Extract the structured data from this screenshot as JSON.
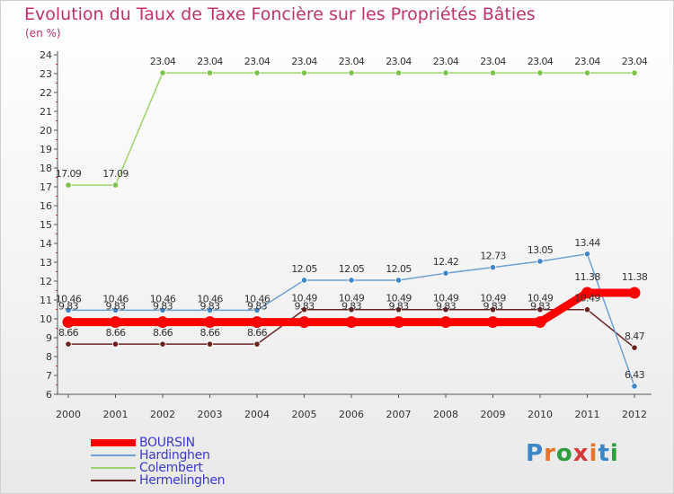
{
  "header": {
    "title": "Evolution du Taux de Taxe Foncière sur les Propriétés Bâties",
    "unit": "(en %)"
  },
  "logo": {
    "text": "Proxiti",
    "letter_colors": [
      "#3a86c8",
      "#e8742a",
      "#2e9d3e",
      "#d43a3a",
      "#e8742a",
      "#3a86c8",
      "#2e9d3e"
    ]
  },
  "chart_data": {
    "type": "line",
    "title": "Evolution du Taux de Taxe Foncière sur les Propriétés Bâties",
    "ylabel": "(en %)",
    "xlabel": "",
    "categories": [
      "2000",
      "2001",
      "2002",
      "2003",
      "2004",
      "2005",
      "2006",
      "2007",
      "2008",
      "2009",
      "2010",
      "2011",
      "2012"
    ],
    "ylim": [
      6,
      24
    ],
    "yticks": [
      "6",
      "7",
      "8",
      "9",
      "10",
      "11",
      "12",
      "13",
      "14",
      "15",
      "16",
      "17",
      "18",
      "19",
      "20",
      "21",
      "22",
      "23",
      "24"
    ],
    "grid": false,
    "legend_position": "bottom-left",
    "series": [
      {
        "name": "Hermelinghen",
        "color": "#6b2424",
        "values": [
          8.66,
          8.66,
          8.66,
          8.66,
          8.66,
          10.49,
          10.49,
          10.49,
          10.49,
          10.49,
          10.49,
          10.49,
          8.47
        ],
        "labels": [
          "8.66",
          "8.66",
          "8.66",
          "8.66",
          "8.66",
          "10.49",
          "10.49",
          "10.49",
          "10.49",
          "10.49",
          "10.49",
          "10.49",
          "8.47"
        ]
      },
      {
        "name": "Colembert",
        "color": "#9ed26a",
        "values": [
          17.09,
          17.09,
          23.04,
          23.04,
          23.04,
          23.04,
          23.04,
          23.04,
          23.04,
          23.04,
          23.04,
          23.04,
          23.04
        ],
        "labels": [
          "17.09",
          "17.09",
          "23.04",
          "23.04",
          "23.04",
          "23.04",
          "23.04",
          "23.04",
          "23.04",
          "23.04",
          "23.04",
          "23.04",
          "23.04"
        ]
      },
      {
        "name": "Hardinghen",
        "color": "#6fa0d2",
        "values": [
          10.46,
          10.46,
          10.46,
          10.46,
          10.46,
          12.05,
          12.05,
          12.05,
          12.42,
          12.73,
          13.05,
          13.44,
          6.43
        ],
        "labels": [
          "10.46",
          "10.46",
          "10.46",
          "10.46",
          "10.46",
          "12.05",
          "12.05",
          "12.05",
          "12.42",
          "12.73",
          "13.05",
          "13.44",
          "6.43"
        ]
      },
      {
        "name": "BOURSIN",
        "color": "#ff0000",
        "values": [
          9.83,
          9.83,
          9.83,
          9.83,
          9.83,
          9.83,
          9.83,
          9.83,
          9.83,
          9.83,
          9.83,
          11.38,
          11.38
        ],
        "labels": [
          "9.83",
          "9.83",
          "9.83",
          "9.83",
          "9.83",
          "9.83",
          "9.83",
          "9.83",
          "9.83",
          "9.83",
          "9.83",
          "11.38",
          "11.38"
        ]
      }
    ],
    "legend": [
      "BOURSIN",
      "Hardinghen",
      "Colembert",
      "Hermelinghen"
    ]
  }
}
